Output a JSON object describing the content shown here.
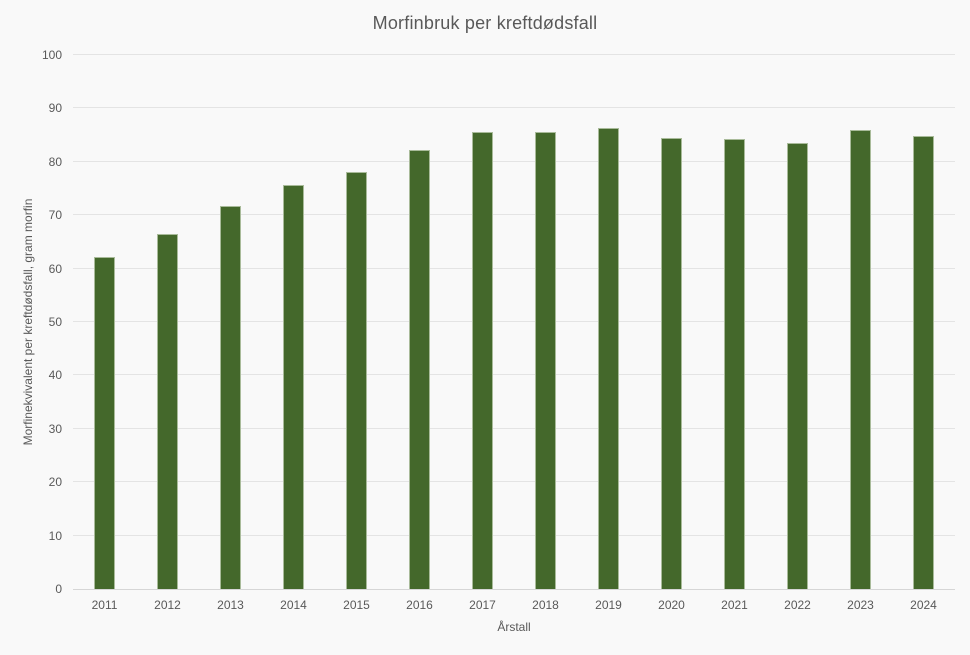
{
  "chart_data": {
    "type": "bar",
    "title": "Morfinbruk per kreftdødsfall",
    "xlabel": "Årstall",
    "ylabel": "Morfinekvivalent per kreftdødsfall, gram morfin",
    "categories": [
      "2011",
      "2012",
      "2013",
      "2014",
      "2015",
      "2016",
      "2017",
      "2018",
      "2019",
      "2020",
      "2021",
      "2022",
      "2023",
      "2024"
    ],
    "values": [
      62.2,
      66.4,
      71.8,
      75.6,
      78.1,
      82.3,
      85.5,
      85.6,
      86.3,
      84.4,
      84.2,
      83.6,
      85.9,
      84.9
    ],
    "ylim": [
      0,
      100
    ],
    "ytick_interval": 10,
    "grid": true,
    "legend": "none",
    "colors": {
      "bar_fill": "#44682b",
      "bar_border": "#a9bb9a",
      "background": "#f9f9f9",
      "gridline": "#e4e4e4",
      "axis_line": "#d6d6d6",
      "text": "#595959"
    }
  }
}
